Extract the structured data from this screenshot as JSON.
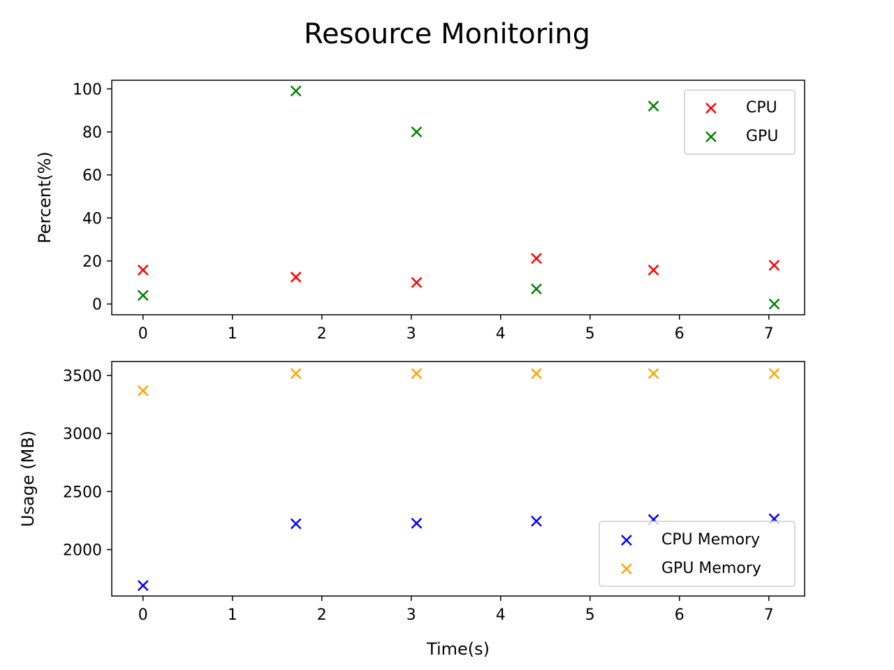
{
  "chart_data": {
    "title": "Resource Monitoring",
    "subplots": [
      {
        "type": "scatter",
        "ylabel": "Percent(%)",
        "xlabel": "",
        "xlim": [
          -0.35,
          7.4
        ],
        "ylim": [
          -5,
          104
        ],
        "xticks": [
          0,
          1,
          2,
          3,
          4,
          5,
          6,
          7
        ],
        "yticks": [
          0,
          20,
          40,
          60,
          80,
          100
        ],
        "legend_position": "upper right",
        "series": [
          {
            "name": "CPU",
            "color": "#ff0000",
            "marker": "x",
            "x": [
              0,
              1.71,
              3.06,
              4.4,
              5.71,
              7.06
            ],
            "y": [
              15.8,
              12.5,
              10.0,
              21.2,
              15.8,
              18.0
            ]
          },
          {
            "name": "GPU",
            "color": "#008000",
            "marker": "x",
            "x": [
              0,
              1.71,
              3.06,
              4.4,
              5.71,
              7.06
            ],
            "y": [
              4,
              99,
              80,
              7,
              92,
              0
            ]
          }
        ]
      },
      {
        "type": "scatter",
        "ylabel": "Usage (MB)",
        "xlabel": "Time(s)",
        "xlim": [
          -0.35,
          7.4
        ],
        "ylim": [
          1600,
          3620
        ],
        "xticks": [
          0,
          1,
          2,
          3,
          4,
          5,
          6,
          7
        ],
        "yticks": [
          2000,
          2500,
          3000,
          3500
        ],
        "legend_position": "lower right",
        "series": [
          {
            "name": "CPU Memory",
            "color": "#0000ff",
            "marker": "x",
            "x": [
              0,
              1.71,
              3.06,
              4.4,
              5.71,
              7.06
            ],
            "y": [
              1690,
              2222,
              2227,
              2245,
              2258,
              2265
            ]
          },
          {
            "name": "GPU Memory",
            "color": "#ffa500",
            "marker": "x",
            "x": [
              0,
              1.71,
              3.06,
              4.4,
              5.71,
              7.06
            ],
            "y": [
              3368,
              3516,
              3516,
              3516,
              3516,
              3516
            ]
          }
        ]
      }
    ]
  }
}
